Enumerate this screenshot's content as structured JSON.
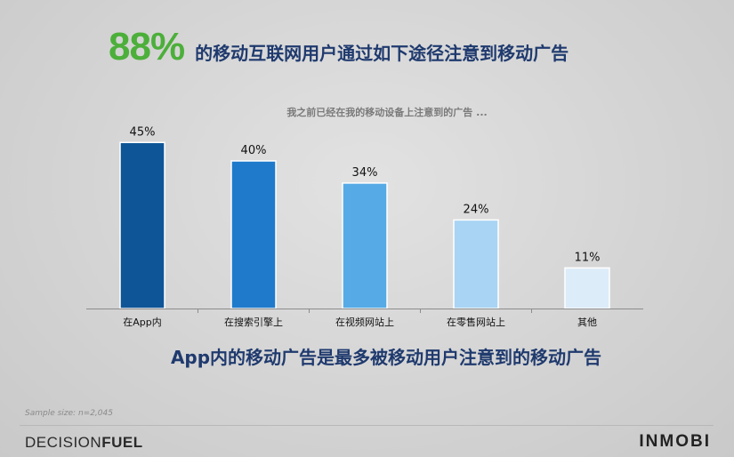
{
  "headline": {
    "big_number": "88%",
    "text": "的移动互联网用户通过如下途径注意到移动广告"
  },
  "subline": "App内的移动广告是最多被移动用户注意到的移动广告",
  "sample_size": "Sample size: n=2,045",
  "brands": {
    "left_part1": "DECISION",
    "left_part2": "FUEL",
    "right": "INMOBI"
  },
  "chart_data": {
    "type": "bar",
    "title": "我之前已经在我的移动设备上注意到的广告 ...",
    "categories": [
      "在App内",
      "在搜索引擎上",
      "在视频网站上",
      "在零售网站上",
      "其他"
    ],
    "values": [
      45,
      40,
      34,
      24,
      11
    ],
    "value_labels": [
      "45%",
      "40%",
      "34%",
      "24%",
      "11%"
    ],
    "colors": [
      "#0e5597",
      "#1f7acc",
      "#56aae6",
      "#a9d4f3",
      "#dcecf9"
    ],
    "ylim": [
      0,
      50
    ],
    "grid": false,
    "legend": "none"
  }
}
